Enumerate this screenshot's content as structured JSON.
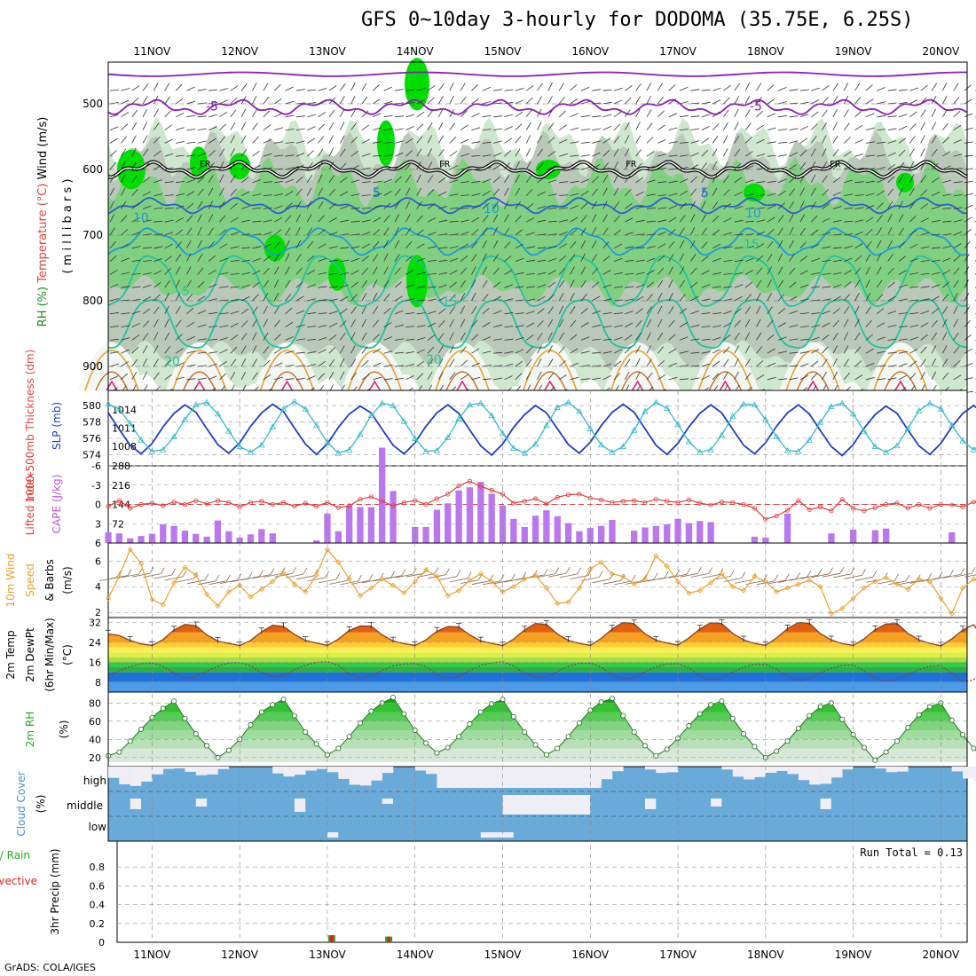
{
  "title": "GFS 0~10day 3-hourly for DODOMA (35.75E, 6.25S)",
  "credit": "GrADS: COLA/IGES",
  "colors": {
    "rh_green": "#00dd00",
    "rh_mid": "#7bd07b",
    "rh_light": "#cfe6cf",
    "rh_grey": "#b9c8b9",
    "temp_purple": "#8a1fb4",
    "temp_blue": "#2b5fcf",
    "temp_lightblue": "#1f9ad8",
    "temp_teal": "#22c2a0",
    "temp_orange": "#e8a030",
    "freeze": "#000000",
    "slp": "#1f3fbf",
    "thickness": "#33bbcc",
    "cape": "#bb77ee",
    "lifted": "#e04040",
    "wind10": "#e8a030",
    "barbs10": "#8a6a50",
    "temp2m_line": "#8a4020",
    "rh2m": "#22bb22",
    "cloud": "#6aaad8",
    "cloud_gap": "#eeeef4"
  },
  "chart_data": [
    {
      "id": "profile",
      "type": "heatmap",
      "ylabel_parts": [
        "RH (%)",
        "Temperature (°C)",
        "Wind (m/s)"
      ],
      "ylabel2": "( m i l l i b a r s )",
      "y_ticks": [
        500,
        600,
        700,
        800,
        900
      ],
      "ylim": [
        450,
        950
      ],
      "freezing_label": "FR",
      "contour_labels": [
        "-5",
        "-5",
        "5",
        "5",
        "10",
        "10",
        "10",
        "15",
        "15",
        "20",
        "20",
        "5"
      ],
      "isotherms": [
        {
          "temp": -5,
          "level": 505
        },
        {
          "temp": 0,
          "level": 600
        },
        {
          "temp": 5,
          "level": 655
        },
        {
          "temp": 10,
          "level": 710
        },
        {
          "temp": 15,
          "level": 770
        },
        {
          "temp": 20,
          "level": 835
        }
      ]
    },
    {
      "id": "slp_thickness",
      "type": "line",
      "ylabel_left": "1000-500mb Thickness (dm)",
      "ylabel_right": "SLP (mb)",
      "y_ticks_left": [
        574,
        576,
        578,
        580
      ],
      "y_ticks_right": [
        1008,
        1011,
        1014
      ],
      "series": [
        {
          "name": "SLP",
          "values": [
            1013.5,
            1010.8,
            1008.2,
            1006.8,
            1008.5,
            1011.2,
            1013.4,
            1014.8,
            1013.6,
            1010.9,
            1008.3,
            1006.9,
            1008.6,
            1011.3,
            1013.5,
            1014.9,
            1013.7,
            1011.0,
            1008.4,
            1006.7,
            1008.4,
            1011.1,
            1013.3,
            1014.6,
            1013.5,
            1010.8,
            1008.2,
            1006.8,
            1008.6,
            1011.3,
            1013.5,
            1014.8,
            1013.4,
            1010.7,
            1008.1,
            1006.6,
            1008.4,
            1011.1,
            1013.2,
            1014.7,
            1013.5,
            1010.9,
            1008.3,
            1006.9,
            1008.7,
            1011.4,
            1013.6,
            1014.9,
            1013.6,
            1010.9,
            1008.2,
            1006.7,
            1008.5,
            1011.2,
            1013.4,
            1014.8,
            1013.5,
            1010.8,
            1008.2,
            1006.8,
            1008.6,
            1011.3,
            1013.5,
            1014.8,
            1013.3,
            1010.6,
            1008.0,
            1006.5,
            1008.3,
            1011.0,
            1013.2,
            1014.6,
            1013.4,
            1010.7,
            1008.1,
            1006.7,
            1008.5,
            1011.2,
            1013.4,
            1014.7,
            1013.3
          ]
        },
        {
          "name": "Thickness",
          "values": [
            580.2,
            579.6,
            577.8,
            575.8,
            574.4,
            574.6,
            576.2,
            578.3,
            580.1,
            580.4,
            579.0,
            576.9,
            575.0,
            574.3,
            575.2,
            577.4,
            579.6,
            580.5,
            579.6,
            577.6,
            575.5,
            574.2,
            574.6,
            576.5,
            578.8,
            580.3,
            580.0,
            578.1,
            576.0,
            574.4,
            574.5,
            576.1,
            578.4,
            580.1,
            580.3,
            578.8,
            576.6,
            574.8,
            574.2,
            575.3,
            577.6,
            579.8,
            580.4,
            579.3,
            577.2,
            575.2,
            574.3,
            575.0,
            577.0,
            579.3,
            580.4,
            579.7,
            577.7,
            575.6,
            574.3,
            574.6,
            576.4,
            578.7,
            580.2,
            580.1,
            578.3,
            576.2,
            574.5,
            574.4,
            575.8,
            578.0,
            579.9,
            580.3,
            579.0,
            576.9,
            575.0,
            574.3,
            575.1,
            577.2,
            579.4,
            580.3,
            579.6,
            577.6,
            575.7,
            574.6,
            575.8
          ]
        }
      ]
    },
    {
      "id": "cape_li",
      "type": "bar",
      "ylabel_left": "Lifted Index",
      "ylabel_right": "CAPE (J/kg)",
      "y_ticks_left": [
        6,
        3,
        0,
        -3,
        -6
      ],
      "y_ticks_right": [
        72,
        144,
        216,
        288
      ],
      "series": [
        {
          "name": "CAPE",
          "values": [
            40,
            36,
            18,
            26,
            34,
            70,
            64,
            46,
            34,
            24,
            84,
            44,
            20,
            32,
            52,
            36,
            0,
            0,
            0,
            10,
            110,
            44,
            140,
            134,
            134,
            356,
            194,
            0,
            60,
            60,
            124,
            148,
            196,
            208,
            228,
            184,
            140,
            90,
            60,
            102,
            122,
            100,
            74,
            44,
            56,
            64,
            86,
            0,
            46,
            58,
            64,
            70,
            90,
            74,
            82,
            78,
            0,
            0,
            0,
            24,
            20,
            0,
            110,
            0,
            0,
            0,
            36,
            0,
            50,
            0,
            48,
            54,
            0,
            0,
            0,
            0,
            0,
            40,
            0,
            0,
            0,
            0,
            0,
            54,
            0,
            0,
            0,
            0,
            0,
            18,
            0,
            0,
            0,
            0,
            0,
            18,
            60
          ]
        },
        {
          "name": "Lifted Index",
          "values": [
            0.3,
            -0.6,
            0.6,
            0.0,
            -0.2,
            0.2,
            -0.4,
            0.0,
            -0.6,
            -0.1,
            -0.6,
            -0.3,
            0.4,
            -0.3,
            -0.5,
            0.0,
            -0.3,
            0.3,
            -0.2,
            0.3,
            -0.3,
            0.5,
            0.2,
            -0.8,
            -1.2,
            -0.5,
            0.2,
            -0.3,
            -0.6,
            0.0,
            -0.9,
            -1.6,
            -2.9,
            -3.6,
            -2.8,
            -2.2,
            -1.6,
            -0.2,
            -0.5,
            -0.9,
            -0.1,
            -1.1,
            -1.5,
            -1.6,
            -1.0,
            -0.7,
            -0.3,
            -0.5,
            -0.6,
            -0.3,
            -0.8,
            -0.5,
            -0.3,
            -0.7,
            -0.2,
            0.1,
            -0.4,
            -0.3,
            0.0,
            0.6,
            2.3,
            1.8,
            0.9,
            -0.6,
            0.8,
            0.4,
            1.0,
            -0.8,
            0.6,
            1.0,
            0.5,
            0.0,
            -0.2,
            0.6,
            0.0,
            0.6,
            0.0,
            0.1,
            0.4,
            -0.4,
            -0.4
          ]
        }
      ]
    },
    {
      "id": "wind10",
      "type": "line",
      "ylabel_parts": [
        "10m Wind",
        "Speed",
        "& Barbs"
      ],
      "yunit": "(m/s)",
      "y_ticks": [
        2,
        4,
        6
      ],
      "ylim": [
        1.6,
        7.4
      ],
      "series": [
        {
          "name": "Speed",
          "values": [
            3.1,
            4.8,
            6.9,
            5.8,
            3.0,
            2.6,
            4.3,
            5.5,
            4.9,
            3.4,
            2.5,
            3.6,
            4.1,
            3.2,
            3.8,
            4.4,
            5.1,
            4.2,
            3.6,
            4.9,
            6.9,
            5.9,
            4.6,
            3.3,
            3.9,
            4.6,
            4.1,
            3.5,
            4.4,
            5.3,
            4.8,
            3.3,
            3.7,
            4.5,
            5.0,
            4.4,
            3.6,
            4.0,
            4.6,
            4.9,
            3.9,
            2.7,
            2.8,
            3.9,
            5.4,
            5.9,
            5.0,
            4.8,
            4.2,
            4.6,
            6.4,
            5.6,
            4.4,
            3.5,
            3.7,
            4.3,
            5.0,
            4.0,
            3.7,
            4.8,
            4.4,
            3.6,
            3.9,
            4.2,
            4.5,
            4.0,
            1.9,
            2.3,
            3.1,
            3.9,
            4.4,
            4.7,
            4.2,
            3.8,
            4.6,
            4.4,
            3.1,
            1.9,
            3.9,
            4.6,
            4.1
          ]
        }
      ]
    },
    {
      "id": "temp2m",
      "type": "area",
      "ylabel_parts": [
        "2m Temp",
        "2m DewPt",
        "(6hr Min/Max)"
      ],
      "yunit": "(°C)",
      "y_ticks": [
        8,
        16,
        24,
        32
      ],
      "ylim": [
        4,
        34
      ],
      "series": [
        {
          "name": "Temperature",
          "values": [
            27.4,
            26.8,
            24.8,
            23.4,
            22.8,
            25.1,
            29.0,
            31.2,
            30.7,
            27.0,
            24.5,
            23.6,
            22.7,
            24.8,
            28.3,
            30.9,
            30.4,
            27.2,
            24.8,
            23.7,
            22.8,
            25.3,
            28.8,
            30.6,
            30.5,
            27.0,
            24.6,
            23.5,
            22.8,
            25.0,
            28.5,
            30.4,
            30.2,
            27.0,
            24.6,
            23.6,
            22.7,
            25.3,
            29.0,
            31.6,
            31.2,
            27.4,
            24.8,
            23.6,
            22.8,
            25.6,
            29.4,
            32.0,
            31.5,
            27.4,
            24.9,
            23.7,
            22.9,
            25.8,
            29.4,
            31.9,
            31.6,
            27.6,
            25.0,
            23.6,
            22.8,
            25.8,
            29.5,
            32.0,
            31.7,
            27.5,
            25.0,
            23.5,
            22.8,
            25.4,
            29.1,
            31.4,
            31.6,
            27.6,
            25.0,
            23.6,
            22.6,
            25.4,
            29.0,
            31.1,
            24.5
          ]
        },
        {
          "name": "Dew Point",
          "values": [
            10.8,
            12.6,
            14.2,
            15.4,
            15.8,
            14.4,
            11.6,
            9.6,
            10.3,
            12.4,
            14.4,
            15.7,
            15.9,
            14.6,
            11.8,
            10.2,
            10.6,
            13.0,
            14.8,
            16.0,
            16.2,
            14.8,
            11.2,
            9.7,
            10.5,
            12.6,
            14.5,
            15.3,
            15.5,
            14.3,
            11.0,
            9.6,
            10.4,
            12.7,
            14.7,
            15.8,
            16.2,
            14.5,
            11.5,
            10.2,
            10.0,
            12.2,
            14.4,
            15.6,
            15.7,
            14.0,
            10.9,
            9.2,
            9.8,
            12.2,
            14.1,
            15.3,
            15.4,
            13.8,
            10.4,
            9.0,
            9.6,
            12.0,
            14.0,
            15.1,
            15.2,
            13.2,
            10.3,
            8.6,
            9.6,
            11.8,
            13.6,
            14.7,
            14.9,
            12.6,
            9.8,
            8.4,
            9.2,
            11.0,
            13.0,
            14.4,
            14.6,
            11.6,
            7.9,
            9.0,
            13.8
          ]
        }
      ]
    },
    {
      "id": "rh2m",
      "type": "area",
      "ylabel": "2m RH",
      "yunit": "(%)",
      "y_ticks": [
        20,
        40,
        60,
        80
      ],
      "ylim": [
        10,
        92
      ],
      "series": [
        {
          "name": "RH",
          "values": [
            22,
            26,
            38,
            51,
            64,
            74,
            82,
            63,
            46,
            33,
            20,
            28,
            40,
            56,
            70,
            78,
            84,
            66,
            48,
            35,
            23,
            30,
            43,
            58,
            71,
            80,
            86,
            68,
            50,
            36,
            25,
            31,
            43,
            57,
            70,
            79,
            84,
            65,
            48,
            34,
            23,
            30,
            43,
            58,
            72,
            81,
            85,
            66,
            48,
            33,
            22,
            29,
            41,
            55,
            68,
            78,
            82,
            63,
            46,
            32,
            20,
            27,
            38,
            52,
            66,
            76,
            80,
            62,
            45,
            31,
            17,
            26,
            38,
            53,
            67,
            76,
            80,
            61,
            45,
            30,
            20,
            48
          ]
        }
      ]
    },
    {
      "id": "cloud",
      "type": "bar",
      "ylabel": "Cloud Cover",
      "yunit": "(%)",
      "y_ticks": [
        "high",
        "middle",
        "low"
      ]
    },
    {
      "id": "precip",
      "type": "bar",
      "ylabel_left_lines": [
        "tal / Rain",
        "Convective"
      ],
      "ylabel": "3hr Precip (mm)",
      "run_total": "Run Total = 0.13",
      "y_ticks": [
        0,
        0.2,
        0.4,
        0.6,
        0.8
      ],
      "ylim": [
        0,
        1.0
      ],
      "series": [
        {
          "name": "Total",
          "values": [
            {
              "x": 13.05,
              "y": 0.075
            },
            {
              "x": 13.7,
              "y": 0.06
            }
          ]
        }
      ]
    }
  ],
  "x_labels": [
    "11NOV",
    "12NOV",
    "13NOV",
    "14NOV",
    "15NOV",
    "16NOV",
    "17NOV",
    "18NOV",
    "19NOV",
    "20NOV"
  ]
}
